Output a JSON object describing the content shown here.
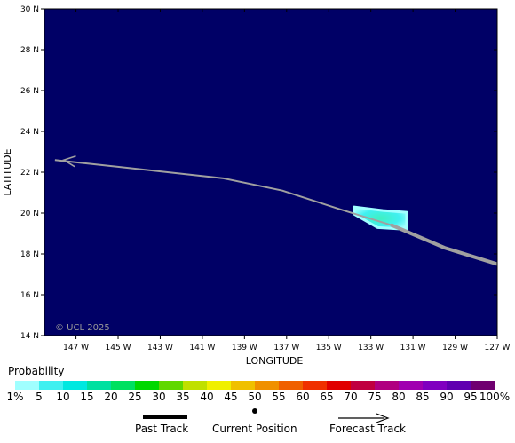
{
  "map": {
    "lon_range": [
      -148.5,
      -127
    ],
    "lat_range": [
      14,
      30
    ],
    "xlabel": "LONGITUDE",
    "ylabel": "LATITUDE",
    "x_ticks": [
      {
        "value": -147,
        "label": "147 W"
      },
      {
        "value": -145,
        "label": "145 W"
      },
      {
        "value": -143,
        "label": "143 W"
      },
      {
        "value": -141,
        "label": "141 W"
      },
      {
        "value": -139,
        "label": "139 W"
      },
      {
        "value": -137,
        "label": "137 W"
      },
      {
        "value": -135,
        "label": "135 W"
      },
      {
        "value": -133,
        "label": "133 W"
      },
      {
        "value": -131,
        "label": "131 W"
      },
      {
        "value": -129,
        "label": "129 W"
      },
      {
        "value": -127,
        "label": "127 W"
      }
    ],
    "y_ticks": [
      {
        "value": 14,
        "label": "14 N"
      },
      {
        "value": 16,
        "label": "16 N"
      },
      {
        "value": 18,
        "label": "18 N"
      },
      {
        "value": 20,
        "label": "20 N"
      },
      {
        "value": 22,
        "label": "22 N"
      },
      {
        "value": 24,
        "label": "24 N"
      },
      {
        "value": 26,
        "label": "26 N"
      },
      {
        "value": 28,
        "label": "28 N"
      },
      {
        "value": 30,
        "label": "30 N"
      }
    ],
    "copyright": "© UCL 2025",
    "background_color": "#000066",
    "past_track": [
      [
        -127,
        17.5
      ],
      [
        -129.5,
        18.3
      ],
      [
        -132,
        19.4
      ]
    ],
    "current_position": [
      -132,
      19.4
    ],
    "forecast_track": [
      [
        -132,
        19.4
      ],
      [
        -134.5,
        20.2
      ],
      [
        -137.2,
        21.1
      ],
      [
        -140,
        21.7
      ],
      [
        -148,
        22.6
      ]
    ],
    "probability_patch": {
      "lon_range": [
        -133.8,
        -131.3
      ],
      "lat_range": [
        19.2,
        20.3
      ]
    }
  },
  "legend": {
    "title": "Probability",
    "labels": [
      "1%",
      "5",
      "10",
      "15",
      "20",
      "25",
      "30",
      "35",
      "40",
      "45",
      "50",
      "55",
      "60",
      "65",
      "70",
      "75",
      "80",
      "85",
      "90",
      "95",
      "100%"
    ],
    "colors": [
      "#a0ffff",
      "#40f0f0",
      "#00e8e0",
      "#00e0a0",
      "#00e060",
      "#00d800",
      "#60d800",
      "#c0e000",
      "#f0f000",
      "#f0c000",
      "#f09000",
      "#f06000",
      "#f03000",
      "#e00000",
      "#c00040",
      "#b00080",
      "#a000b0",
      "#8000c0",
      "#6000b0",
      "#700070"
    ],
    "past_track_label": "Past Track",
    "current_position_label": "Current Position",
    "forecast_track_label": "Forecast Track"
  }
}
